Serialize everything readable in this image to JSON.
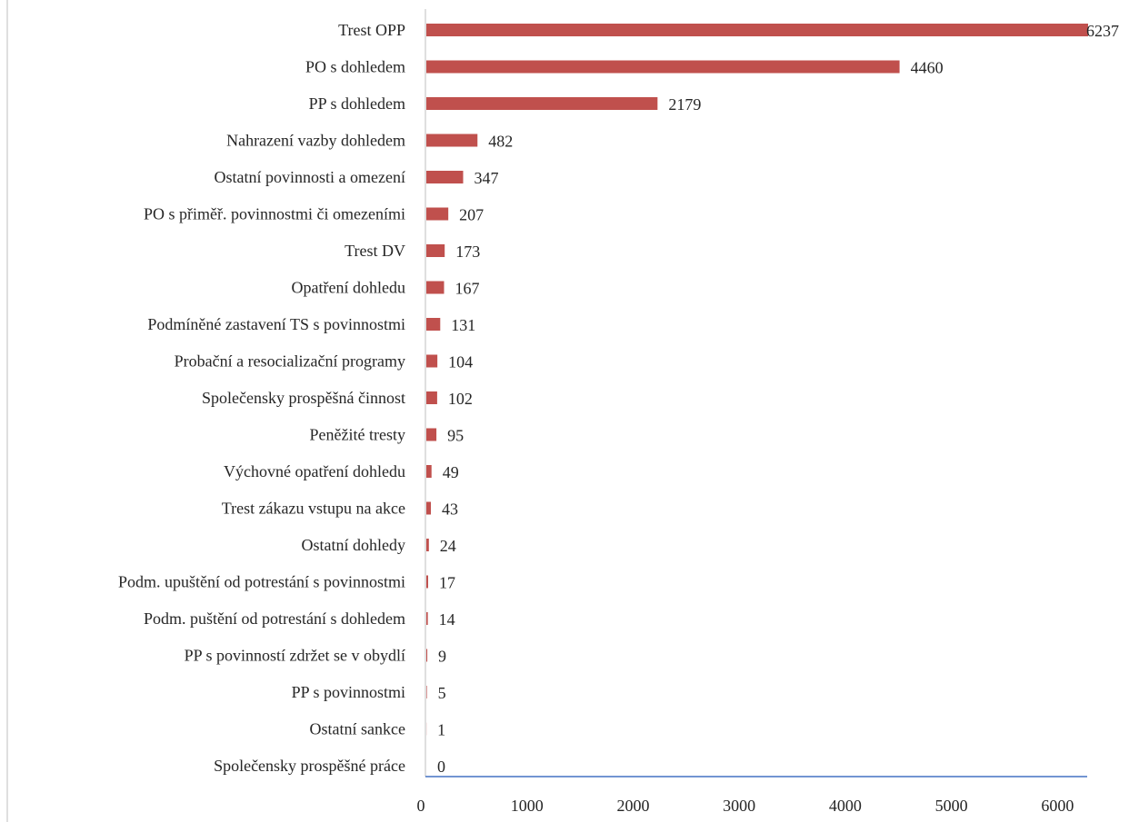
{
  "chart_data": {
    "type": "bar",
    "orientation": "horizontal",
    "categories": [
      "Trest OPP",
      "PO s dohledem",
      "PP s dohledem",
      "Nahrazení vazby dohledem",
      "Ostatní povinnosti a omezení",
      "PO s  přiměř. povinnostmi či omezeními",
      "Trest DV",
      "Opatření dohledu",
      "Podmíněné zastavení TS s povinnostmi",
      "Probační a resocializační programy",
      "Společensky prospěšná činnost",
      "Peněžité tresty",
      "Výchovné opatření dohledu",
      "Trest zákazu vstupu na akce",
      "Ostatní dohledy",
      "Podm. upuštění od potrestání s povinnostmi",
      "Podm. puštění od potrestání s dohledem",
      "PP s povinností zdržet se v obydlí",
      "PP s  povinnostmi",
      "Ostatní sankce",
      "Společensky prospěšné práce"
    ],
    "values": [
      6237,
      4460,
      2179,
      482,
      347,
      207,
      173,
      167,
      131,
      104,
      102,
      95,
      49,
      43,
      24,
      17,
      14,
      9,
      5,
      1,
      0
    ],
    "value_labels": [
      "6237",
      "4460",
      "2179",
      "482",
      "347",
      "207",
      "173",
      "167",
      "131",
      "104",
      "102",
      "95",
      "49",
      "43",
      "24",
      "17",
      "14",
      "9",
      "5",
      "1",
      "0"
    ],
    "xlim": [
      0,
      6237
    ],
    "x_ticks": [
      0,
      1000,
      2000,
      3000,
      4000,
      5000,
      6000
    ],
    "x_tick_labels": [
      "0",
      "1000",
      "2000",
      "3000",
      "4000",
      "5000",
      "6000"
    ],
    "grid": false,
    "colors": {
      "bar": "#c0504d",
      "x_axis": "#4472c4",
      "y_axis": "#bfbfbf",
      "text": "#262626"
    }
  }
}
